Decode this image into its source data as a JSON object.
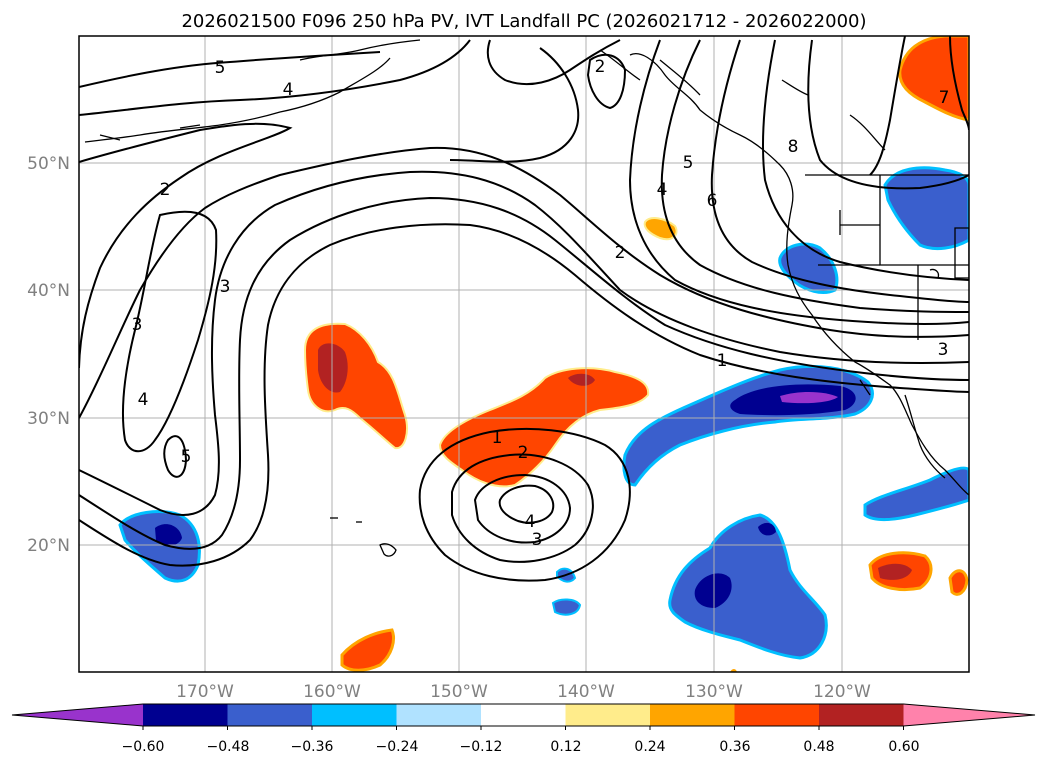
{
  "title": "2026021500 F096 250 hPa PV, IVT Landfall PC (2026021712 - 2026022000)",
  "lat_labels": [
    "50°N",
    "40°N",
    "30°N",
    "20°N"
  ],
  "lon_labels": [
    "170°W",
    "160°W",
    "150°W",
    "140°W",
    "130°W",
    "120°W"
  ],
  "colorbar": {
    "ticks": [
      "−0.60",
      "−0.48",
      "−0.36",
      "−0.24",
      "−0.12",
      "0.12",
      "0.24",
      "0.36",
      "0.48",
      "0.60"
    ],
    "colors": [
      "#9933cc",
      "#000090",
      "#3a5fcd",
      "#00bfff",
      "#b0e2ff",
      "#ffffff",
      "#ffec8b",
      "#ffa500",
      "#ff4500",
      "#b22222",
      "#ff82ab"
    ]
  },
  "contour_labels": [
    "5",
    "4",
    "2",
    "2",
    "3",
    "3",
    "4",
    "5",
    "1",
    "2",
    "4",
    "3",
    "2",
    "4",
    "5",
    "6",
    "8",
    "7",
    "1",
    "3"
  ],
  "colors": {
    "land_line": "#000000",
    "grid": "#b0b0b0"
  }
}
